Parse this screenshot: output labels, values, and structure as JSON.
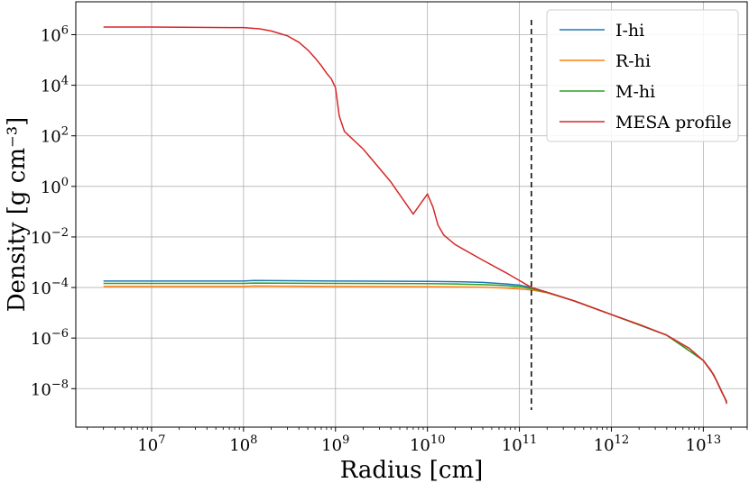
{
  "chart_data": {
    "type": "line",
    "title": "",
    "xlabel": "Radius [cm]",
    "ylabel": "Density [g cm⁻³]",
    "xscale": "log",
    "yscale": "log",
    "xlim": [
      1500000.0,
      30000000000000.0
    ],
    "ylim": [
      3e-10,
      20000000.0
    ],
    "grid": true,
    "legend_loc": "upper right",
    "x_ticks": [
      {
        "base": "10",
        "exp": "7",
        "value": 10000000.0
      },
      {
        "base": "10",
        "exp": "8",
        "value": 100000000.0
      },
      {
        "base": "10",
        "exp": "9",
        "value": 1000000000.0
      },
      {
        "base": "10",
        "exp": "10",
        "value": 10000000000.0
      },
      {
        "base": "10",
        "exp": "11",
        "value": 100000000000.0
      },
      {
        "base": "10",
        "exp": "12",
        "value": 1000000000000.0
      },
      {
        "base": "10",
        "exp": "13",
        "value": 10000000000000.0
      }
    ],
    "y_ticks": [
      {
        "base": "10",
        "exp": "6",
        "value": 1000000.0
      },
      {
        "base": "10",
        "exp": "4",
        "value": 10000.0
      },
      {
        "base": "10",
        "exp": "2",
        "value": 100.0
      },
      {
        "base": "10",
        "exp": "0",
        "value": 1.0
      },
      {
        "base": "10",
        "exp": "−2",
        "value": 0.01
      },
      {
        "base": "10",
        "exp": "−4",
        "value": 0.0001
      },
      {
        "base": "10",
        "exp": "−6",
        "value": 1e-06
      },
      {
        "base": "10",
        "exp": "−8",
        "value": 1e-08
      }
    ],
    "vline": {
      "x": 135000000000.0,
      "style": "dashed",
      "color": "#000000"
    },
    "series": [
      {
        "name": "I-hi",
        "color": "#1f77b4",
        "x": [
          3000000.0,
          100000000.0,
          130000000.0,
          1000000000.0,
          10000000000.0,
          20000000000.0,
          40000000000.0,
          70000000000.0,
          100000000000.0,
          135000000000.0,
          200000000000.0,
          400000000000.0,
          1000000000000.0,
          4000000000000.0,
          10000000000000.0,
          13000000000000.0,
          16000000000000.0,
          18000000000000.0
        ],
        "y": [
          0.00018,
          0.00018,
          0.00019,
          0.00018,
          0.000175,
          0.00017,
          0.00016,
          0.00014,
          0.000125,
          0.0001,
          6.5e-05,
          2.9e-05,
          8.5e-06,
          1.3e-06,
          1.3e-07,
          3.5e-08,
          7e-09,
          3e-09
        ]
      },
      {
        "name": "R-hi",
        "color": "#ff7f0e",
        "x": [
          3000000.0,
          100000000.0,
          130000000.0,
          1000000000.0,
          10000000000.0,
          20000000000.0,
          40000000000.0,
          70000000000.0,
          100000000000.0,
          135000000000.0,
          200000000000.0,
          400000000000.0,
          1000000000000.0,
          4000000000000.0,
          10000000000000.0,
          13000000000000.0,
          16000000000000.0,
          18000000000000.0
        ],
        "y": [
          0.00011,
          0.00011,
          0.000115,
          0.00011,
          0.000108,
          0.000106,
          0.000102,
          9.5e-05,
          8.8e-05,
          8e-05,
          6.2e-05,
          2.9e-05,
          8.5e-06,
          1.3e-06,
          1.3e-07,
          3.5e-08,
          7e-09,
          3e-09
        ]
      },
      {
        "name": "M-hi",
        "color": "#2ca02c",
        "x": [
          3000000.0,
          100000000.0,
          130000000.0,
          1000000000.0,
          10000000000.0,
          20000000000.0,
          40000000000.0,
          70000000000.0,
          100000000000.0,
          135000000000.0,
          200000000000.0,
          400000000000.0,
          1000000000000.0,
          4000000000000.0,
          10000000000000.0,
          13000000000000.0,
          16000000000000.0,
          18000000000000.0
        ],
        "y": [
          0.000145,
          0.000145,
          0.00015,
          0.000145,
          0.000142,
          0.000138,
          0.00013,
          0.00012,
          0.000108,
          9e-05,
          6.4e-05,
          2.9e-05,
          8.5e-06,
          1.3e-06,
          1.3e-07,
          3.5e-08,
          7e-09,
          3e-09
        ]
      },
      {
        "name": "MESA profile",
        "color": "#d62728",
        "x": [
          3000000.0,
          10000000.0,
          100000000.0,
          150000000.0,
          200000000.0,
          300000000.0,
          400000000.0,
          500000000.0,
          600000000.0,
          700000000.0,
          800000000.0,
          900000000.0,
          1000000000.0,
          1100000000.0,
          1250000000.0,
          2000000000.0,
          4000000000.0,
          7000000000.0,
          10000000000.0,
          11500000000.0,
          13000000000.0,
          15000000000.0,
          20000000000.0,
          40000000000.0,
          70000000000.0,
          100000000000.0,
          135000000000.0,
          200000000000.0,
          400000000000.0,
          1000000000000.0,
          2000000000000.0,
          4000000000000.0,
          7000000000000.0,
          10000000000000.0,
          12000000000000.0,
          14000000000000.0,
          16000000000000.0,
          17500000000000.0,
          18000000000000.0
        ],
        "y": [
          2000000.0,
          2000000.0,
          1900000.0,
          1700000.0,
          1400000.0,
          900000.0,
          500000.0,
          250000.0,
          120000.0,
          60000.0,
          30000.0,
          18000.0,
          8000.0,
          600.0,
          150.0,
          30.0,
          1.5,
          0.08,
          0.5,
          0.15,
          0.03,
          0.012,
          0.005,
          0.0012,
          0.0004,
          0.00019,
          0.0001,
          6.5e-05,
          2.9e-05,
          8.5e-06,
          3.5e-06,
          1.3e-06,
          4e-07,
          1.3e-07,
          5.5e-08,
          2e-08,
          7e-09,
          3.5e-09,
          2.5e-09
        ]
      }
    ]
  }
}
